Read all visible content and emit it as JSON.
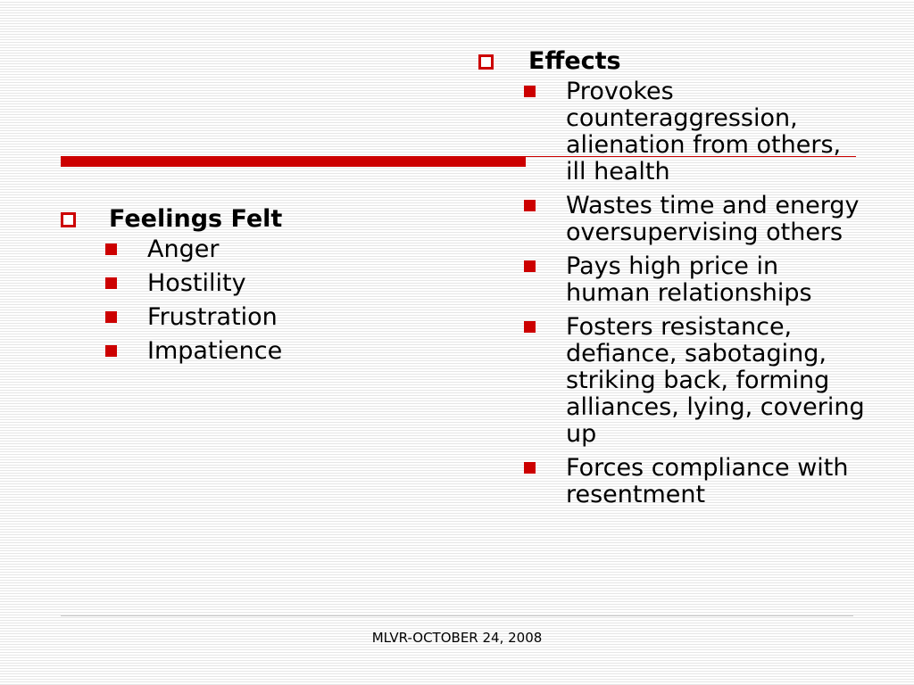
{
  "colors": {
    "accent": "#cc0000",
    "footer_rule": "#c8c8c8",
    "stripe": "#e6e6e6",
    "text": "#000000"
  },
  "icons": {
    "heading_bullet": "hollow-square-icon",
    "item_bullet": "filled-square-icon"
  },
  "left": {
    "heading": "Feelings Felt",
    "items": [
      {
        "text": "Anger"
      },
      {
        "text": "Hostility"
      },
      {
        "text": "Frustration"
      },
      {
        "text": "Impatience"
      }
    ]
  },
  "right": {
    "heading": "Effects",
    "items": [
      {
        "text": "Provokes counteraggression, alienation from others, ill health"
      },
      {
        "text": "Wastes time and energy oversupervising others"
      },
      {
        "text": "Pays high price in human relationships"
      },
      {
        "text": "Fosters resistance, defiance, sabotaging, striking back, forming alliances, lying, covering up"
      },
      {
        "text": "Forces compliance with resentment"
      }
    ]
  },
  "footer": {
    "text": "MLVR-OCTOBER 24, 2008"
  }
}
